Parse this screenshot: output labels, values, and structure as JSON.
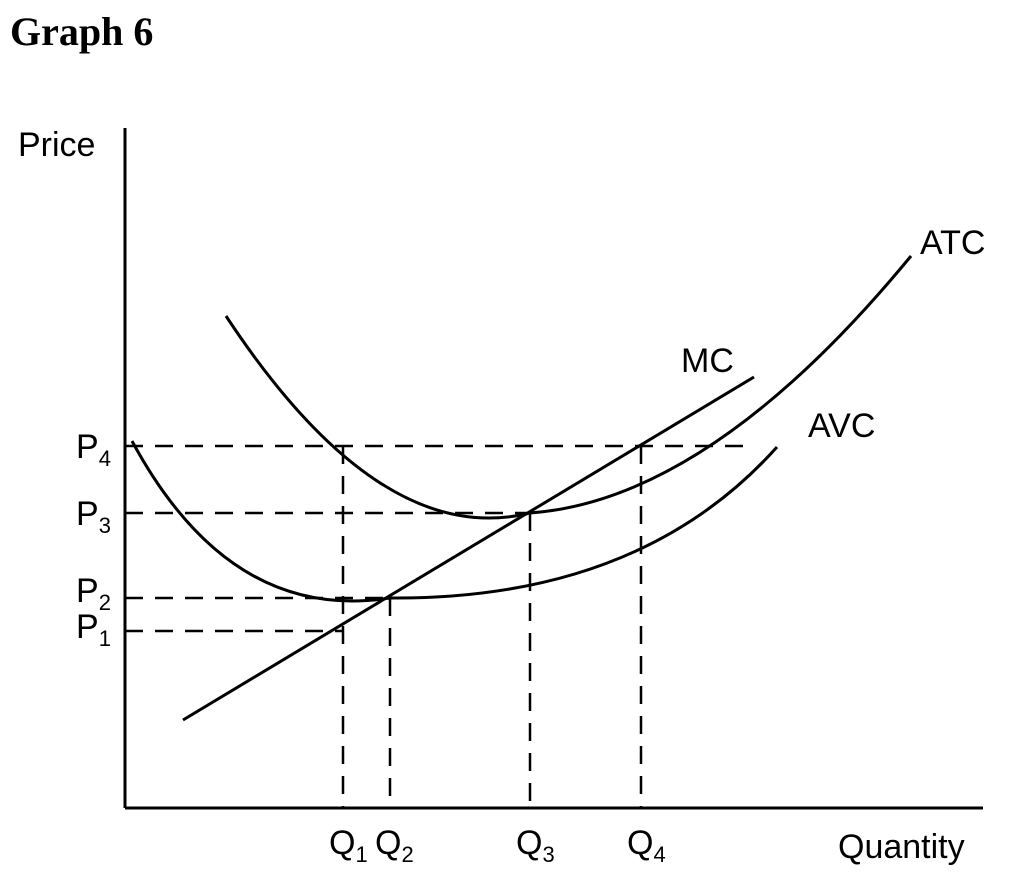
{
  "title": "Graph 6",
  "axes": {
    "y_label": "Price",
    "x_label": "Quantity"
  },
  "price_levels": [
    {
      "base": "P",
      "sub": "4"
    },
    {
      "base": "P",
      "sub": "3"
    },
    {
      "base": "P",
      "sub": "2"
    },
    {
      "base": "P",
      "sub": "1"
    }
  ],
  "quantity_levels": [
    {
      "base": "Q",
      "sub": "1"
    },
    {
      "base": "Q",
      "sub": "2"
    },
    {
      "base": "Q",
      "sub": "3"
    },
    {
      "base": "Q",
      "sub": "4"
    }
  ],
  "curves": {
    "atc": "ATC",
    "mc": "MC",
    "avc": "AVC"
  },
  "colors": {
    "line": "#000000",
    "background": "#ffffff"
  }
}
